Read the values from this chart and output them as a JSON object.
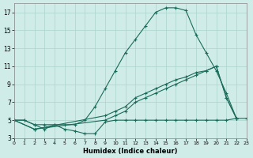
{
  "bg_color": "#d0ece8",
  "grid_color": "#aad4cc",
  "line_color": "#1a6b5a",
  "xlabel": "Humidex (Indice chaleur)",
  "xlim": [
    0,
    23
  ],
  "ylim": [
    3,
    18
  ],
  "xticks": [
    0,
    1,
    2,
    3,
    4,
    5,
    6,
    7,
    8,
    9,
    10,
    11,
    12,
    13,
    14,
    15,
    16,
    17,
    18,
    19,
    20,
    21,
    22,
    23
  ],
  "yticks": [
    3,
    5,
    7,
    9,
    11,
    13,
    15,
    17
  ],
  "series": [
    {
      "x": [
        0,
        1,
        2,
        3,
        4,
        5,
        6,
        7,
        8,
        9,
        10,
        11,
        12,
        13,
        14,
        15,
        16,
        17,
        18,
        19,
        20,
        21,
        22
      ],
      "y": [
        5,
        5,
        4.5,
        4.0,
        4.5,
        4.5,
        4.5,
        5.0,
        6.5,
        8.5,
        10.5,
        12.5,
        14.0,
        15.5,
        17.0,
        17.5,
        17.5,
        17.2,
        14.5,
        12.5,
        10.5,
        8.0,
        5.2
      ]
    },
    {
      "x": [
        0,
        2,
        9,
        10,
        11,
        12,
        13,
        14,
        15,
        16,
        17,
        18,
        19,
        20,
        21,
        22
      ],
      "y": [
        5,
        4.0,
        5.5,
        6.0,
        6.5,
        7.5,
        8.0,
        8.5,
        9.0,
        9.5,
        9.8,
        10.3,
        10.5,
        11.0,
        7.5,
        5.2
      ]
    },
    {
      "x": [
        0,
        2,
        9,
        10,
        11,
        12,
        13,
        14,
        15,
        16,
        17,
        18,
        19,
        20,
        21,
        22
      ],
      "y": [
        5,
        4.0,
        5.0,
        5.5,
        6.0,
        7.0,
        7.5,
        8.0,
        8.5,
        9.0,
        9.5,
        10.0,
        10.5,
        11.0,
        7.5,
        5.2
      ]
    },
    {
      "x": [
        0,
        1,
        2,
        3,
        4,
        5,
        6,
        7,
        8,
        9,
        10,
        11,
        12,
        13,
        14,
        15,
        16,
        17,
        18,
        19,
        20,
        21,
        22,
        23
      ],
      "y": [
        5,
        5,
        4.5,
        4.5,
        4.5,
        4.0,
        3.8,
        3.5,
        3.5,
        4.8,
        5.0,
        5.0,
        5.0,
        5.0,
        5.0,
        5.0,
        5.0,
        5.0,
        5.0,
        5.0,
        5.0,
        5.0,
        5.2,
        5.2
      ]
    }
  ]
}
